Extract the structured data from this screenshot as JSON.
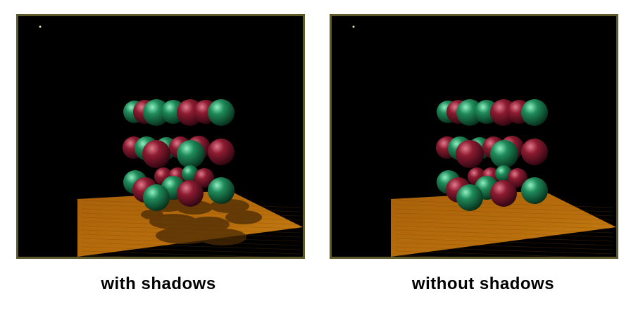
{
  "panels": [
    {
      "caption": "with shadows",
      "shadows": true
    },
    {
      "caption": "without shadows",
      "shadows": false
    }
  ],
  "colors": {
    "border": "#5e5a2c",
    "background": "#000000",
    "floor": "#b86e0c",
    "sphere_green": "#1f8a5a",
    "sphere_red": "#8c1b30"
  }
}
